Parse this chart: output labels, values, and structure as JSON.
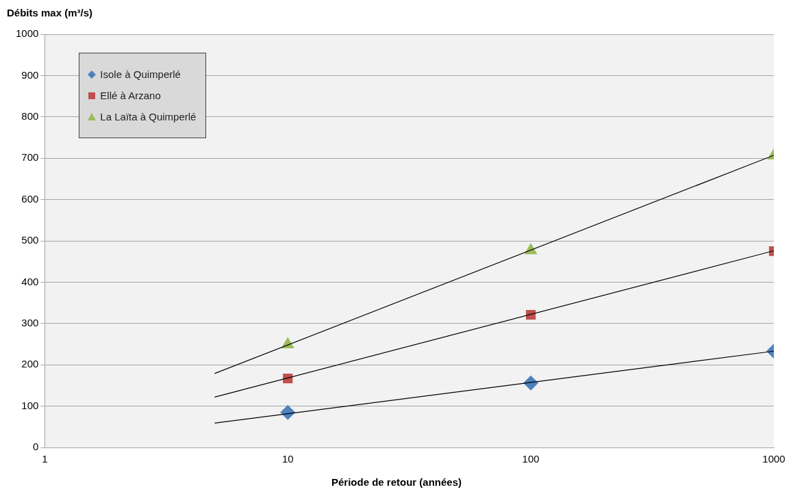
{
  "chart_data": {
    "type": "scatter",
    "ylabel": "Débits max (m³/s)",
    "xlabel": "Période de retour (années)",
    "log": "x",
    "xlim": [
      1,
      1000
    ],
    "xticks": [
      1,
      10,
      100,
      1000
    ],
    "ylim": [
      0,
      1000
    ],
    "yticks": [
      0,
      100,
      200,
      300,
      400,
      500,
      600,
      700,
      800,
      900,
      1000
    ],
    "grid": "y",
    "legend": "top left",
    "series": [
      {
        "name": "Isole à Quimperlé",
        "color": "#4f81bd",
        "marker": "diamond",
        "x": [
          10,
          100,
          1000
        ],
        "values": [
          85,
          156,
          233
        ]
      },
      {
        "name": "Ellé à Arzano",
        "color": "#c0504d",
        "marker": "square",
        "x": [
          10,
          100,
          1000
        ],
        "values": [
          167,
          321,
          475
        ]
      },
      {
        "name": "La Laïta à Quimperlé",
        "color": "#9bbb59",
        "marker": "triangle",
        "x": [
          10,
          100,
          1000
        ],
        "values": [
          249,
          477,
          706
        ]
      },
      {
        "type": "line",
        "color": "#000000",
        "marker": "none",
        "x": [
          5,
          1000
        ],
        "values": [
          59,
          233
        ]
      },
      {
        "type": "line",
        "color": "#000000",
        "marker": "none",
        "x": [
          5,
          1000
        ],
        "values": [
          122,
          476
        ]
      },
      {
        "type": "line",
        "color": "#000000",
        "marker": "none",
        "x": [
          5,
          1000
        ],
        "values": [
          179,
          707
        ]
      }
    ]
  }
}
